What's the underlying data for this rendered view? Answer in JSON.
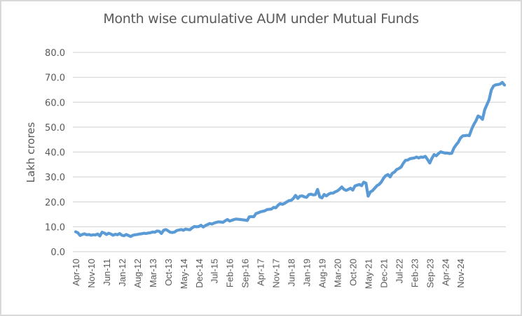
{
  "chart_data": {
    "type": "line",
    "title": "Month wise cumulative AUM under Mutual Funds",
    "xlabel": "",
    "ylabel": "Lakh crores",
    "ylim": [
      0,
      80
    ],
    "yticks": [
      "0.0",
      "10.0",
      "20.0",
      "30.0",
      "40.0",
      "50.0",
      "60.0",
      "70.0",
      "80.0"
    ],
    "grid": true,
    "legend": "none",
    "line_color": "#5b9bd5",
    "tick_labels": [
      "Apr-10",
      "Nov-10",
      "Jun-11",
      "Jan-12",
      "Aug-12",
      "Mar-13",
      "Oct-13",
      "May-14",
      "Dec-14",
      "Jul-15",
      "Feb-16",
      "Sep-16",
      "Apr-17",
      "Nov-17",
      "Jun-18",
      "Jan-19",
      "Aug-19",
      "Mar-20",
      "Oct-20",
      "May-21",
      "Dec-21",
      "Jul-22",
      "Feb-23",
      "Sep-23",
      "Apr-24",
      "Nov-24"
    ],
    "series": [
      {
        "name": "AUM",
        "anchors": {
          "Apr-10": 8.0,
          "Nov-10": 6.7,
          "Jun-11": 7.0,
          "Jan-12": 6.5,
          "Aug-12": 7.5,
          "Mar-13": 8.0,
          "Oct-13": 8.5,
          "May-14": 10.0,
          "Dec-14": 11.0,
          "Jul-15": 12.5,
          "Feb-16": 13.0,
          "Sep-16": 16.0,
          "Apr-17": 19.0,
          "Nov-17": 22.0,
          "Jun-18": 23.5,
          "Jan-19": 23.5,
          "Aug-19": 26.5,
          "Mar-20": 22.5,
          "Oct-20": 28.0,
          "May-21": 33.0,
          "Dec-21": 38.0,
          "Jul-22": 38.5,
          "Feb-23": 40.0,
          "Sep-23": 46.5,
          "Apr-24": 54.0,
          "Nov-24": 67.5
        },
        "values": [
          8.0,
          7.6,
          6.5,
          6.9,
          7.2,
          6.8,
          6.9,
          6.6,
          6.8,
          6.7,
          7.1,
          6.3,
          7.8,
          7.5,
          6.9,
          7.4,
          7.1,
          6.6,
          7.0,
          6.8,
          7.3,
          6.6,
          6.4,
          6.9,
          6.5,
          6.1,
          6.6,
          6.8,
          6.9,
          7.1,
          7.2,
          7.4,
          7.3,
          7.5,
          7.6,
          7.9,
          7.8,
          8.3,
          8.2,
          7.3,
          8.6,
          8.9,
          8.4,
          7.8,
          7.7,
          7.9,
          8.5,
          8.7,
          8.9,
          8.6,
          9.1,
          8.9,
          8.8,
          9.6,
          10.1,
          10.0,
          10.1,
          10.6,
          9.9,
          10.5,
          10.9,
          11.3,
          11.1,
          11.5,
          11.8,
          12.0,
          11.9,
          11.8,
          12.4,
          12.9,
          12.3,
          12.6,
          12.9,
          13.1,
          13.0,
          12.9,
          12.8,
          12.7,
          12.5,
          14.0,
          14.1,
          14.0,
          15.3,
          15.6,
          16.0,
          16.2,
          16.4,
          16.9,
          17.0,
          17.1,
          17.8,
          17.6,
          18.6,
          19.3,
          19.0,
          19.4,
          20.0,
          20.5,
          20.6,
          21.4,
          22.6,
          21.4,
          22.3,
          22.4,
          22.0,
          21.8,
          22.9,
          23.1,
          22.8,
          22.9,
          25.0,
          22.0,
          21.6,
          23.0,
          22.4,
          23.1,
          23.5,
          23.5,
          24.0,
          24.4,
          25.1,
          26.0,
          25.0,
          24.6,
          25.0,
          25.5,
          24.7,
          26.4,
          26.7,
          27.0,
          26.5,
          27.9,
          27.5,
          22.3,
          24.0,
          24.5,
          25.5,
          26.5,
          27.0,
          28.0,
          29.5,
          30.5,
          31.0,
          30.0,
          31.5,
          32.0,
          33.0,
          33.4,
          34.0,
          35.5,
          36.7,
          36.8,
          37.3,
          37.5,
          37.6,
          38.0,
          37.6,
          38.0,
          37.9,
          38.3,
          37.0,
          35.6,
          37.5,
          39.0,
          38.5,
          39.4,
          40.1,
          39.8,
          39.6,
          39.6,
          39.4,
          39.5,
          41.6,
          42.9,
          44.0,
          45.6,
          46.5,
          46.6,
          46.7,
          46.6,
          49.0,
          51.0,
          52.5,
          54.5,
          54.0,
          53.1,
          57.0,
          59.0,
          61.0,
          64.9,
          66.5,
          67.0,
          67.1,
          67.3,
          68.0,
          66.9
        ]
      }
    ]
  }
}
